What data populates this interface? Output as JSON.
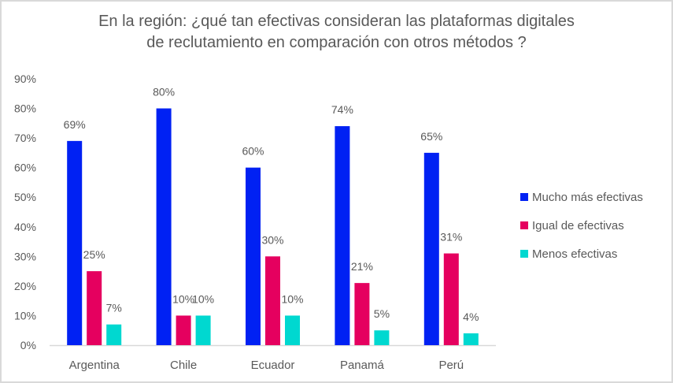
{
  "chart_data": {
    "type": "bar",
    "title_lines": [
      "En la región: ¿qué tan efectivas consideran las plataformas digitales",
      "de reclutamiento en comparación con otros métodos ?"
    ],
    "xlabel": "",
    "ylabel": "",
    "categories": [
      "Argentina",
      "Chile",
      "Ecuador",
      "Panamá",
      "Perú"
    ],
    "series": [
      {
        "name": "Mucho más efectivas",
        "color": "#0021f3",
        "values": [
          69,
          80,
          60,
          74,
          65
        ],
        "labels": [
          "69%",
          "80%",
          "60%",
          "74%",
          "65%"
        ]
      },
      {
        "name": "Igual de efectivas",
        "color": "#e5005f",
        "values": [
          25,
          10,
          30,
          21,
          31
        ],
        "labels": [
          "25%",
          "10%",
          "30%",
          "21%",
          "31%"
        ]
      },
      {
        "name": "Menos efectivas",
        "color": "#00d8d0",
        "values": [
          7,
          10,
          10,
          5,
          4
        ],
        "labels": [
          "7%",
          "10%",
          "10%",
          "5%",
          "4%"
        ]
      }
    ],
    "ylim": [
      0,
      90
    ],
    "yticks": [
      0,
      10,
      20,
      30,
      40,
      50,
      60,
      70,
      80,
      90
    ],
    "ytick_labels": [
      "0%",
      "10%",
      "20%",
      "30%",
      "40%",
      "50%",
      "60%",
      "70%",
      "80%",
      "90%"
    ],
    "grid": false,
    "legend_position": "right"
  }
}
